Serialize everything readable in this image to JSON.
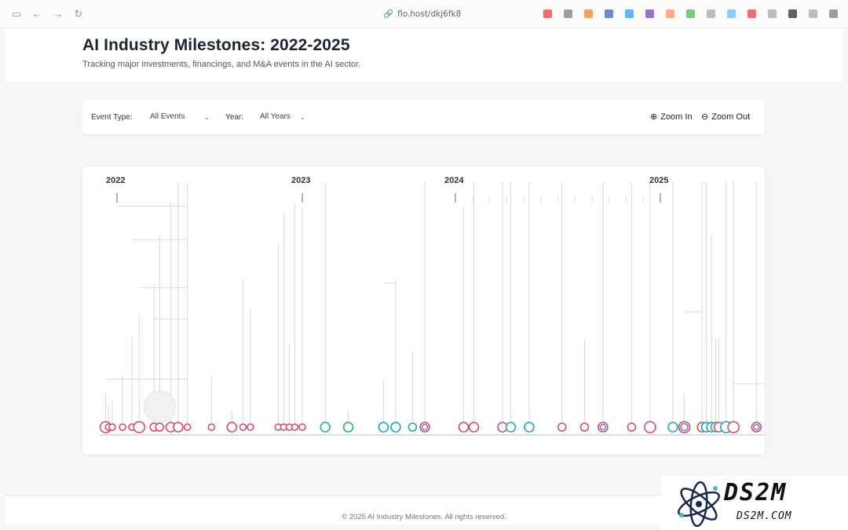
{
  "browser": {
    "url": "flo.host/dkj6fk8",
    "nav": {
      "sidebar_glyph": "▭",
      "back_glyph": "←",
      "forward_glyph": "→",
      "reload_glyph": "↻",
      "link_glyph": "🔗"
    },
    "extension_colors": [
      "#e57373",
      "#9e9e9e",
      "#f4a261",
      "#6c8ebf",
      "#64b5f6",
      "#9575cd",
      "#ffab91",
      "#81c784",
      "#bdbdbd",
      "#90caf9",
      "#e57373",
      "#bdbdbd",
      "#616161",
      "#bdbdbd",
      "#9e9e9e"
    ]
  },
  "header": {
    "title": "AI Industry Milestones: 2022-2025",
    "subtitle": "Tracking major investments, financings, and M&A events in the AI sector."
  },
  "filters": {
    "event_type_label": "Event Type:",
    "event_type_value": "All Events",
    "year_label": "Year:",
    "year_value": "All Years",
    "chevron": "⌄",
    "zoom_in_label": "Zoom In",
    "zoom_out_label": "Zoom Out",
    "zoom_in_icon": "⊕",
    "zoom_out_icon": "⊖"
  },
  "timeline": {
    "year_labels": [
      "2022",
      "2023",
      "2024",
      "2025"
    ],
    "colors": {
      "investment": "#d94a6b",
      "financing": "#1aa5b8",
      "ma": "#22b58a",
      "mixed": "#6f7fc9"
    }
  },
  "chart_data": {
    "type": "scatter",
    "title": "AI Industry Milestones: 2022-2025",
    "x_axis": "time (fraction of year)",
    "years": [
      2022,
      2023,
      2024,
      2025
    ],
    "events": [
      {
        "t": 2021.88,
        "kind": "investment",
        "size": 7,
        "stem": 0.12
      },
      {
        "t": 2021.91,
        "kind": "investment",
        "size": 4,
        "stem": 0.08
      },
      {
        "t": 2021.95,
        "kind": "investment",
        "size": 4,
        "stem": 0.1
      },
      {
        "t": 2022.03,
        "kind": "investment",
        "size": 4,
        "stem": 0.2
      },
      {
        "t": 2022.08,
        "kind": "investment",
        "size": 4,
        "stem": 0.36
      },
      {
        "t": 2022.12,
        "kind": "investment",
        "size": 7,
        "stem": 0.45
      },
      {
        "t": 2022.2,
        "kind": "investment",
        "size": 5,
        "stem": 0.58
      },
      {
        "t": 2022.23,
        "kind": "investment",
        "size": 5,
        "stem": 0.78
      },
      {
        "t": 2022.29,
        "kind": "investment",
        "size": 6,
        "stem": 0.92
      },
      {
        "t": 2022.33,
        "kind": "investment",
        "size": 6,
        "stem": 1.0
      },
      {
        "t": 2022.38,
        "kind": "investment",
        "size": 4,
        "stem": 1.0
      },
      {
        "t": 2022.51,
        "kind": "investment",
        "size": 4,
        "stem": 0.2
      },
      {
        "t": 2022.62,
        "kind": "investment",
        "size": 6,
        "stem": 0.05
      },
      {
        "t": 2022.68,
        "kind": "investment",
        "size": 4,
        "stem": 0.6
      },
      {
        "t": 2022.72,
        "kind": "investment",
        "size": 4,
        "stem": 0.48
      },
      {
        "t": 2022.87,
        "kind": "investment",
        "size": 4,
        "stem": 0.75
      },
      {
        "t": 2022.9,
        "kind": "investment",
        "size": 4,
        "stem": 0.88
      },
      {
        "t": 2022.93,
        "kind": "investment",
        "size": 4,
        "stem": 0.33
      },
      {
        "t": 2022.96,
        "kind": "investment",
        "size": 4,
        "stem": 0.92
      },
      {
        "t": 2023.0,
        "kind": "investment",
        "size": 4,
        "stem": 0.9
      },
      {
        "t": 2023.15,
        "kind": "ma",
        "size": 6,
        "stem": 1.0
      },
      {
        "t": 2023.3,
        "kind": "ma",
        "size": 6,
        "stem": 0.05
      },
      {
        "t": 2023.53,
        "kind": "financing",
        "size": 6,
        "stem": 0.18
      },
      {
        "t": 2023.61,
        "kind": "financing",
        "size": 6,
        "stem": 0.6
      },
      {
        "t": 2023.72,
        "kind": "ma",
        "size": 5,
        "stem": 0.3
      },
      {
        "t": 2023.8,
        "kind": "mixed",
        "size": 6,
        "stem": 1.0
      },
      {
        "t": 2024.04,
        "kind": "investment",
        "size": 6,
        "stem": 0.9
      },
      {
        "t": 2024.09,
        "kind": "investment",
        "size": 6,
        "stem": 1.0
      },
      {
        "t": 2024.23,
        "kind": "investment",
        "size": 6,
        "stem": 1.0
      },
      {
        "t": 2024.27,
        "kind": "ma",
        "size": 6,
        "stem": 1.0
      },
      {
        "t": 2024.36,
        "kind": "financing",
        "size": 6,
        "stem": 1.0
      },
      {
        "t": 2024.52,
        "kind": "investment",
        "size": 5,
        "stem": 1.0
      },
      {
        "t": 2024.63,
        "kind": "investment",
        "size": 5,
        "stem": 0.35
      },
      {
        "t": 2024.72,
        "kind": "mixed",
        "size": 6,
        "stem": 1.0
      },
      {
        "t": 2024.86,
        "kind": "investment",
        "size": 5,
        "stem": 1.0
      },
      {
        "t": 2024.95,
        "kind": "investment",
        "size": 7,
        "stem": 1.0
      },
      {
        "t": 2025.12,
        "kind": "ma",
        "size": 6,
        "stem": 1.0
      },
      {
        "t": 2025.23,
        "kind": "mixed",
        "size": 7,
        "stem": 0.12
      },
      {
        "t": 2025.4,
        "kind": "investment",
        "size": 6,
        "stem": 1.0
      },
      {
        "t": 2025.44,
        "kind": "financing",
        "size": 6,
        "stem": 1.0
      },
      {
        "t": 2025.49,
        "kind": "financing",
        "size": 6,
        "stem": 0.78
      },
      {
        "t": 2025.53,
        "kind": "ma",
        "size": 6,
        "stem": 0.35
      },
      {
        "t": 2025.56,
        "kind": "investment",
        "size": 6,
        "stem": 0.35
      },
      {
        "t": 2025.63,
        "kind": "financing",
        "size": 7,
        "stem": 1.0
      },
      {
        "t": 2025.7,
        "kind": "investment",
        "size": 7,
        "stem": 1.0
      },
      {
        "t": 2025.92,
        "kind": "mixed",
        "size": 6,
        "stem": 1.0
      }
    ]
  },
  "footer": {
    "text": "© 2025 AI Industry Milestones. All rights reserved."
  },
  "watermark": {
    "big": "DS2M",
    "small": "DS2M.COM"
  }
}
